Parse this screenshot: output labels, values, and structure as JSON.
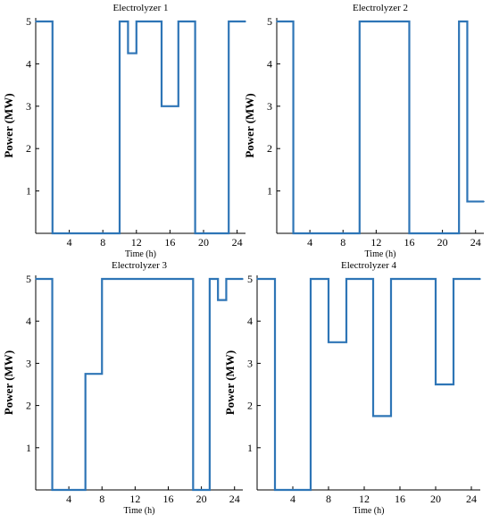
{
  "colors": {
    "series": "#2e75b6",
    "axis": "#000000"
  },
  "chart_data": [
    {
      "type": "line",
      "step": "post",
      "title": "Electrolyzer 1",
      "xlabel": "Time (h)",
      "ylabel": "Power (MW)",
      "xlim": [
        0,
        25
      ],
      "ylim": [
        0,
        5
      ],
      "xticks": [
        4,
        8,
        12,
        16,
        20,
        24
      ],
      "yticks": [
        1,
        2,
        3,
        4,
        5
      ],
      "x": [
        0,
        2,
        10,
        11,
        12,
        15,
        17,
        19,
        23,
        25
      ],
      "y": [
        5,
        0,
        5,
        4.25,
        5,
        3,
        5,
        0,
        5,
        5
      ]
    },
    {
      "type": "line",
      "step": "post",
      "title": "Electrolyzer 2",
      "xlabel": "Time (h)",
      "ylabel": "Power (MW)",
      "xlim": [
        0,
        25
      ],
      "ylim": [
        0,
        5
      ],
      "xticks": [
        4,
        8,
        12,
        16,
        20,
        24
      ],
      "yticks": [
        1,
        2,
        3,
        4,
        5
      ],
      "x": [
        0,
        2,
        10,
        16,
        22,
        23,
        25
      ],
      "y": [
        5,
        0,
        5,
        0,
        5,
        0.75,
        0.75
      ]
    },
    {
      "type": "line",
      "step": "post",
      "title": "Electrolyzer 3",
      "xlabel": "Time (h)",
      "ylabel": "Power (MW)",
      "xlim": [
        0,
        25
      ],
      "ylim": [
        0,
        5
      ],
      "xticks": [
        4,
        8,
        12,
        16,
        20,
        24
      ],
      "yticks": [
        1,
        2,
        3,
        4,
        5
      ],
      "x": [
        0,
        2,
        6,
        8,
        19,
        21,
        22,
        23,
        25
      ],
      "y": [
        5,
        0,
        2.75,
        5,
        0,
        5,
        4.5,
        5,
        5
      ]
    },
    {
      "type": "line",
      "step": "post",
      "title": "Electrolyzer 4",
      "xlabel": "Time (h)",
      "ylabel": "Power (MW)",
      "xlim": [
        0,
        25
      ],
      "ylim": [
        0,
        5
      ],
      "xticks": [
        4,
        8,
        12,
        16,
        20,
        24
      ],
      "yticks": [
        1,
        2,
        3,
        4,
        5
      ],
      "x": [
        0,
        2,
        6,
        8,
        10,
        13,
        15,
        20,
        22,
        25
      ],
      "y": [
        5,
        0,
        5,
        3.5,
        5,
        1.75,
        5,
        2.5,
        5,
        5
      ]
    }
  ]
}
